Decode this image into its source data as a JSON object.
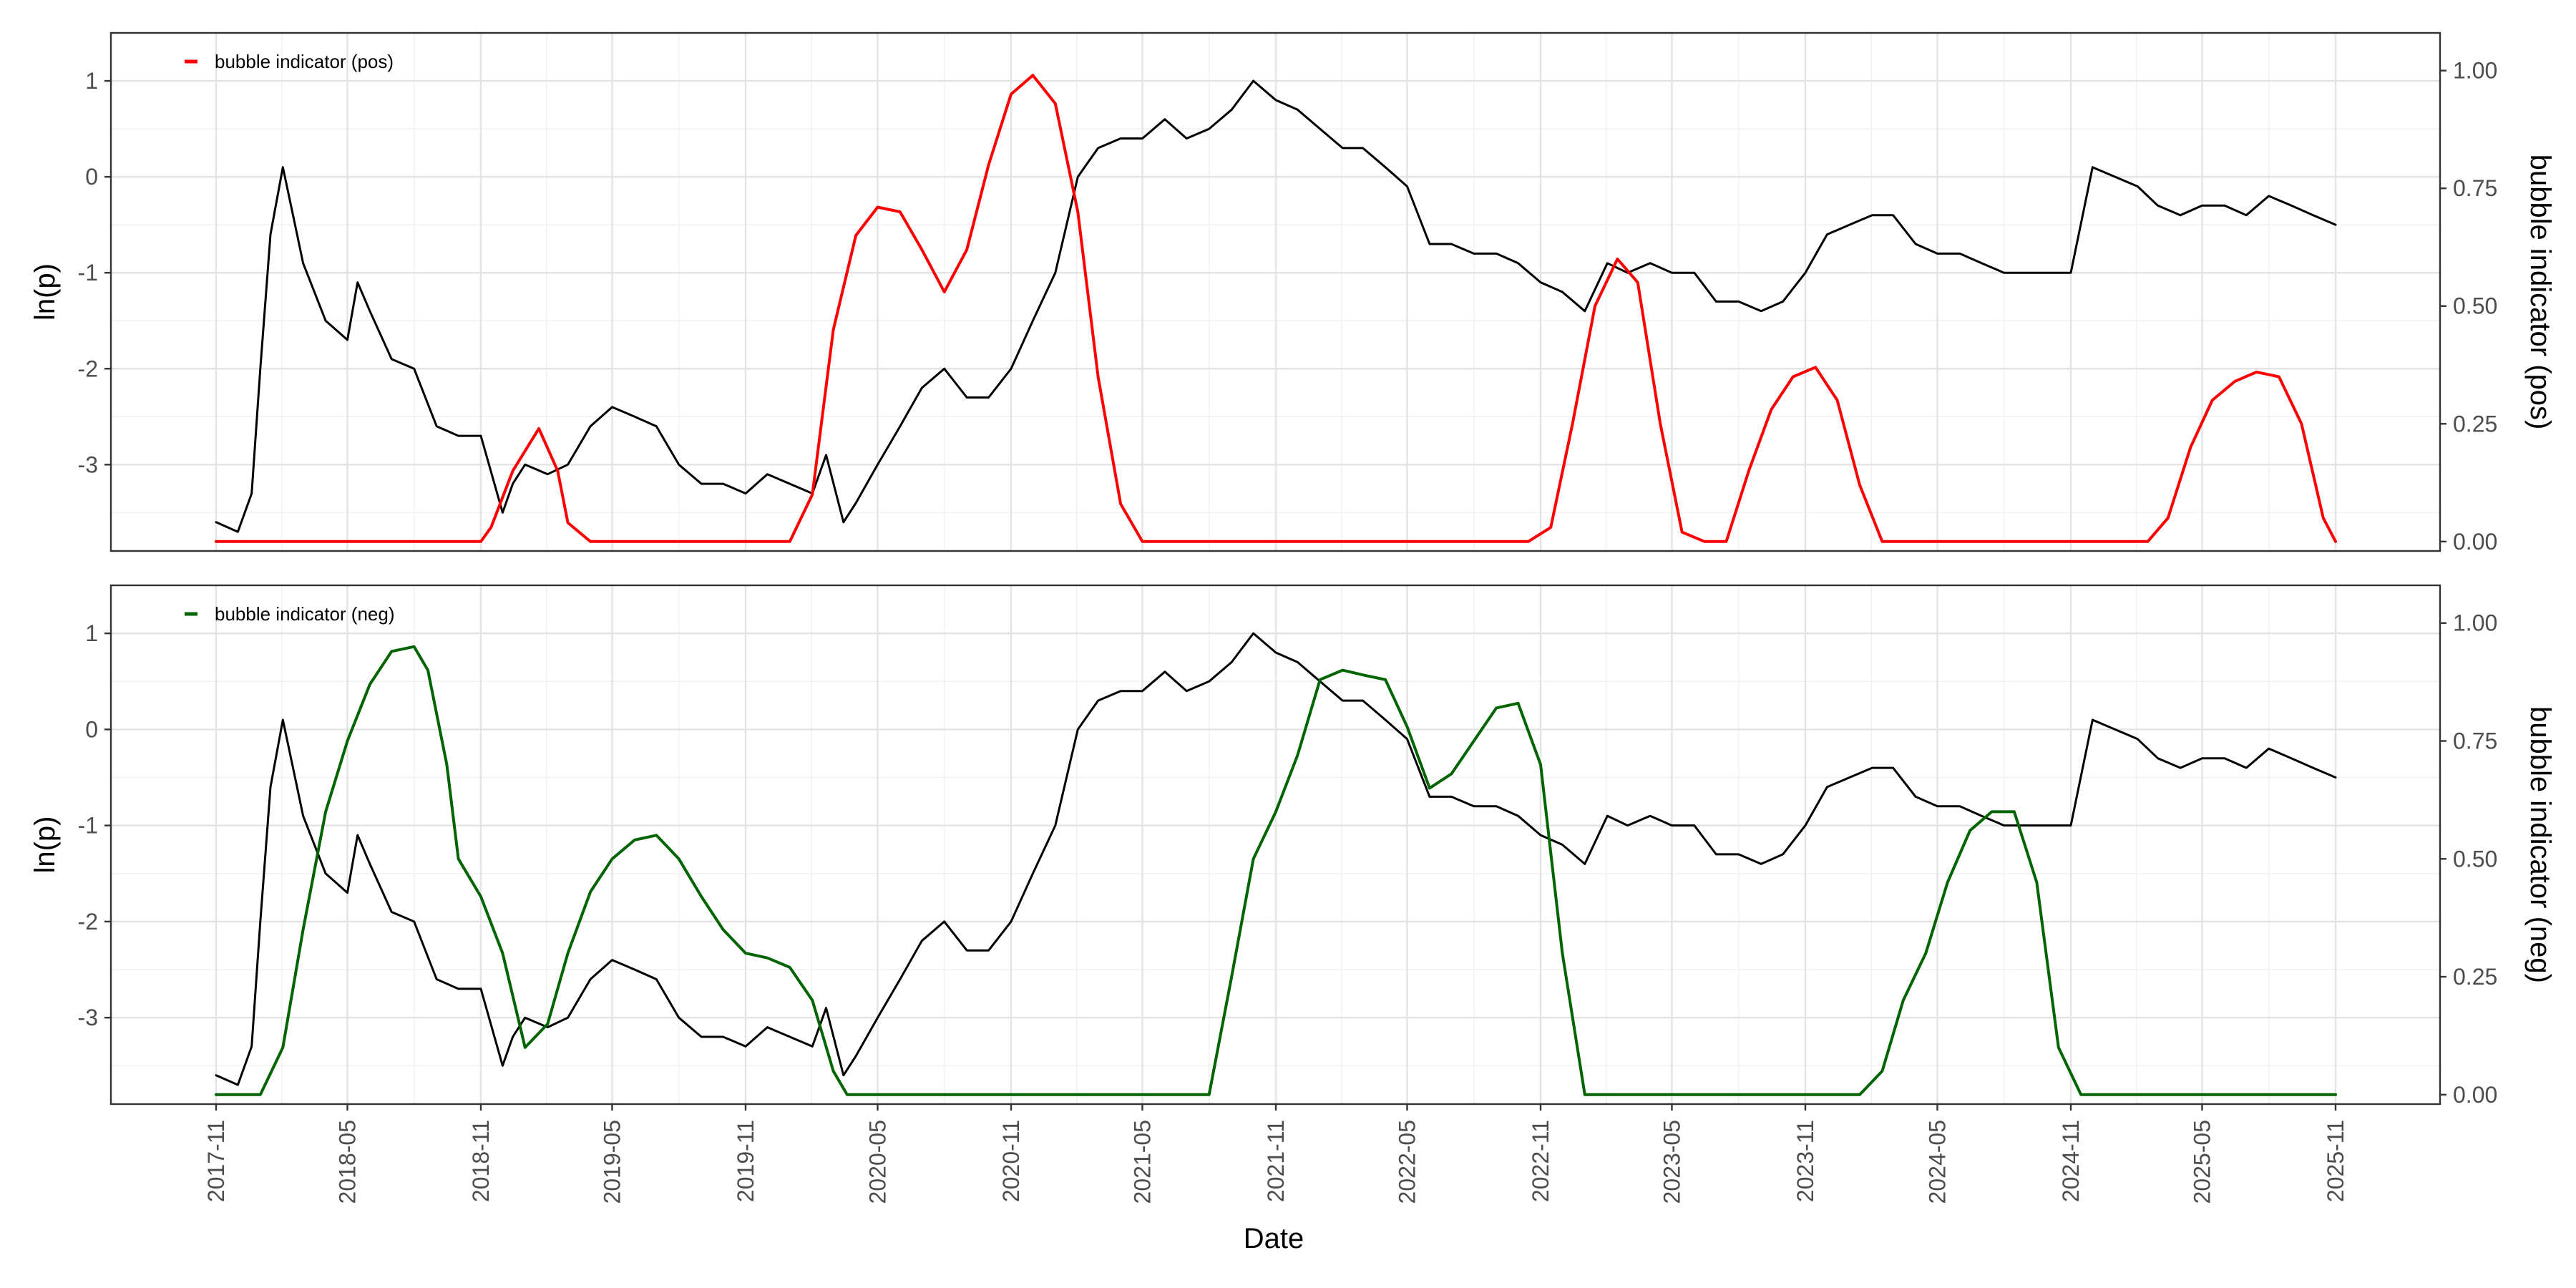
{
  "chart_data": [
    {
      "type": "line",
      "legend": "bubble indicator (pos)",
      "legend_position": "top-left",
      "xlabel": "Date",
      "ylabel_left": "ln(p)",
      "ylabel_right": "bubble indicator (pos)",
      "xlim": [
        "2017-11-01",
        "2025-11-01"
      ],
      "xticks": [
        "2017-11",
        "2018-05",
        "2018-11",
        "2019-05",
        "2019-11",
        "2020-05",
        "2020-11",
        "2021-05",
        "2021-11",
        "2022-05",
        "2022-11",
        "2023-05",
        "2023-11",
        "2024-05",
        "2024-11",
        "2025-05",
        "2025-11"
      ],
      "ylim_left": [
        -3.9,
        1.5
      ],
      "yticks_left": [
        "1",
        "0",
        "-1",
        "-2",
        "-3"
      ],
      "ylim_right": [
        -0.02,
        1.08
      ],
      "yticks_right": [
        "1.00",
        "0.75",
        "0.50",
        "0.25",
        "0.00"
      ],
      "grid": true,
      "series": [
        {
          "name": "ln(p)",
          "axis": "left",
          "color": "#000000",
          "x": [
            "2017-11-01",
            "2017-12-01",
            "2017-12-20",
            "2018-01-01",
            "2018-01-15",
            "2018-02-01",
            "2018-02-15",
            "2018-03-01",
            "2018-04-01",
            "2018-05-01",
            "2018-05-15",
            "2018-06-01",
            "2018-07-01",
            "2018-08-01",
            "2018-09-01",
            "2018-10-01",
            "2018-11-01",
            "2018-12-01",
            "2018-12-15",
            "2019-01-01",
            "2019-02-01",
            "2019-03-01",
            "2019-04-01",
            "2019-05-01",
            "2019-06-01",
            "2019-07-01",
            "2019-08-01",
            "2019-09-01",
            "2019-10-01",
            "2019-11-01",
            "2019-12-01",
            "2020-01-01",
            "2020-02-01",
            "2020-02-20",
            "2020-03-15",
            "2020-04-01",
            "2020-05-01",
            "2020-06-01",
            "2020-07-01",
            "2020-08-01",
            "2020-09-01",
            "2020-10-01",
            "2020-11-01",
            "2020-12-01",
            "2021-01-01",
            "2021-02-01",
            "2021-03-01",
            "2021-04-01",
            "2021-05-01",
            "2021-06-01",
            "2021-07-01",
            "2021-08-01",
            "2021-09-01",
            "2021-10-01",
            "2021-11-01",
            "2021-12-01",
            "2022-01-01",
            "2022-02-01",
            "2022-03-01",
            "2022-04-01",
            "2022-05-01",
            "2022-06-01",
            "2022-07-01",
            "2022-08-01",
            "2022-09-01",
            "2022-10-01",
            "2022-11-01",
            "2022-12-01",
            "2023-01-01",
            "2023-02-01",
            "2023-03-01",
            "2023-04-01",
            "2023-05-01",
            "2023-06-01",
            "2023-07-01",
            "2023-08-01",
            "2023-09-01",
            "2023-10-01",
            "2023-11-01",
            "2023-12-01",
            "2024-01-01",
            "2024-02-01",
            "2024-03-01",
            "2024-04-01",
            "2024-05-01",
            "2024-06-01",
            "2024-07-01",
            "2024-08-01",
            "2024-09-01",
            "2024-10-01",
            "2024-11-01",
            "2024-12-01",
            "2025-01-01",
            "2025-02-01",
            "2025-03-01",
            "2025-04-01",
            "2025-05-01",
            "2025-06-01",
            "2025-07-01",
            "2025-08-01",
            "2025-09-01",
            "2025-10-01",
            "2025-11-01"
          ],
          "values": [
            -3.6,
            -3.7,
            -3.3,
            -2.0,
            -0.6,
            0.1,
            -0.4,
            -0.9,
            -1.5,
            -1.7,
            -1.1,
            -1.4,
            -1.9,
            -2.0,
            -2.6,
            -2.7,
            -2.7,
            -3.5,
            -3.2,
            -3.0,
            -3.1,
            -3.0,
            -2.6,
            -2.4,
            -2.5,
            -2.6,
            -3.0,
            -3.2,
            -3.2,
            -3.3,
            -3.1,
            -3.2,
            -3.3,
            -2.9,
            -3.6,
            -3.4,
            -3.0,
            -2.6,
            -2.2,
            -2.0,
            -2.3,
            -2.3,
            -2.0,
            -1.5,
            -1.0,
            0.0,
            0.3,
            0.4,
            0.4,
            0.6,
            0.4,
            0.5,
            0.7,
            1.0,
            0.8,
            0.7,
            0.5,
            0.3,
            0.3,
            0.1,
            -0.1,
            -0.7,
            -0.7,
            -0.8,
            -0.8,
            -0.9,
            -1.1,
            -1.2,
            -1.4,
            -0.9,
            -1.0,
            -0.9,
            -1.0,
            -1.0,
            -1.3,
            -1.3,
            -1.4,
            -1.3,
            -1.0,
            -0.6,
            -0.5,
            -0.4,
            -0.4,
            -0.7,
            -0.8,
            -0.8,
            -0.9,
            -1.0,
            -1.0,
            -1.0,
            -1.0,
            0.1,
            0.0,
            -0.1,
            -0.3,
            -0.4,
            -0.3,
            -0.3,
            -0.4,
            -0.2,
            -0.3,
            -0.4,
            -0.5
          ]
        },
        {
          "name": "bubble indicator (pos)",
          "axis": "right",
          "color": "#ff0000",
          "x": [
            "2017-11-01",
            "2018-11-01",
            "2018-11-15",
            "2018-12-15",
            "2019-01-20",
            "2019-02-15",
            "2019-03-01",
            "2019-04-01",
            "2019-11-01",
            "2020-01-01",
            "2020-02-01",
            "2020-03-01",
            "2020-04-01",
            "2020-05-01",
            "2020-06-01",
            "2020-07-01",
            "2020-08-01",
            "2020-09-01",
            "2020-10-01",
            "2020-11-01",
            "2020-12-01",
            "2021-01-01",
            "2021-02-01",
            "2021-03-01",
            "2021-04-01",
            "2021-05-01",
            "2021-05-15",
            "2021-06-01",
            "2022-01-01",
            "2022-10-15",
            "2022-11-15",
            "2022-12-15",
            "2023-01-15",
            "2023-02-15",
            "2023-03-15",
            "2023-04-15",
            "2023-05-15",
            "2023-06-15",
            "2023-07-15",
            "2023-08-15",
            "2023-09-15",
            "2023-10-15",
            "2023-11-15",
            "2023-12-15",
            "2024-01-15",
            "2024-02-15",
            "2024-12-01",
            "2025-01-15",
            "2025-02-15",
            "2025-03-15",
            "2025-04-15",
            "2025-05-15",
            "2025-06-15",
            "2025-07-15",
            "2025-08-15",
            "2025-09-15",
            "2025-10-15",
            "2025-11-01"
          ],
          "values": [
            0.0,
            0.0,
            0.03,
            0.15,
            0.24,
            0.15,
            0.04,
            0.0,
            0.0,
            0.0,
            0.1,
            0.45,
            0.65,
            0.71,
            0.7,
            0.62,
            0.53,
            0.62,
            0.8,
            0.95,
            0.99,
            0.93,
            0.7,
            0.35,
            0.08,
            0.0,
            0.0,
            0.0,
            0.0,
            0.0,
            0.03,
            0.25,
            0.5,
            0.6,
            0.55,
            0.25,
            0.02,
            0.0,
            0.0,
            0.15,
            0.28,
            0.35,
            0.37,
            0.3,
            0.12,
            0.0,
            0.0,
            0.0,
            0.0,
            0.05,
            0.2,
            0.3,
            0.34,
            0.36,
            0.35,
            0.25,
            0.05,
            0.0
          ]
        }
      ]
    },
    {
      "type": "line",
      "legend": "bubble indicator (neg)",
      "legend_position": "top-left",
      "xlabel": "Date",
      "ylabel_left": "ln(p)",
      "ylabel_right": "bubble indicator (neg)",
      "xlim": [
        "2017-11-01",
        "2025-11-01"
      ],
      "xticks": [
        "2017-11",
        "2018-05",
        "2018-11",
        "2019-05",
        "2019-11",
        "2020-05",
        "2020-11",
        "2021-05",
        "2021-11",
        "2022-05",
        "2022-11",
        "2023-05",
        "2023-11",
        "2024-05",
        "2024-11",
        "2025-05",
        "2025-11"
      ],
      "ylim_left": [
        -3.9,
        1.5
      ],
      "yticks_left": [
        "1",
        "0",
        "-1",
        "-2",
        "-3"
      ],
      "ylim_right": [
        -0.02,
        1.08
      ],
      "yticks_right": [
        "1.00",
        "0.75",
        "0.50",
        "0.25",
        "0.00"
      ],
      "grid": true,
      "series": [
        {
          "name": "ln(p)",
          "axis": "left",
          "color": "#000000",
          "same_as_panel_1": true
        },
        {
          "name": "bubble indicator (neg)",
          "axis": "right",
          "color": "#006400",
          "x": [
            "2017-11-01",
            "2018-01-01",
            "2018-02-01",
            "2018-03-01",
            "2018-04-01",
            "2018-05-01",
            "2018-06-01",
            "2018-07-01",
            "2018-08-01",
            "2018-08-20",
            "2018-09-15",
            "2018-10-01",
            "2018-11-01",
            "2018-12-01",
            "2019-01-01",
            "2019-02-01",
            "2019-03-01",
            "2019-04-01",
            "2019-05-01",
            "2019-06-01",
            "2019-07-01",
            "2019-08-01",
            "2019-09-01",
            "2019-10-01",
            "2019-11-01",
            "2019-12-01",
            "2020-01-01",
            "2020-02-01",
            "2020-03-01",
            "2020-03-20",
            "2020-04-01",
            "2021-08-01",
            "2021-09-01",
            "2021-10-01",
            "2021-11-01",
            "2021-12-01",
            "2022-01-01",
            "2022-02-01",
            "2022-03-01",
            "2022-04-01",
            "2022-05-01",
            "2022-06-01",
            "2022-07-01",
            "2022-08-01",
            "2022-09-01",
            "2022-10-01",
            "2022-11-01",
            "2022-12-01",
            "2023-01-01",
            "2023-02-01",
            "2023-03-01",
            "2024-01-15",
            "2024-02-15",
            "2024-03-15",
            "2024-04-15",
            "2024-05-15",
            "2024-06-15",
            "2024-07-15",
            "2024-08-15",
            "2024-09-15",
            "2024-10-15",
            "2024-11-15",
            "2025-11-01"
          ],
          "values": [
            0.0,
            0.0,
            0.1,
            0.35,
            0.6,
            0.75,
            0.87,
            0.94,
            0.95,
            0.9,
            0.7,
            0.5,
            0.42,
            0.3,
            0.1,
            0.15,
            0.3,
            0.43,
            0.5,
            0.54,
            0.55,
            0.5,
            0.42,
            0.35,
            0.3,
            0.29,
            0.27,
            0.2,
            0.05,
            0.0,
            0.0,
            0.0,
            0.25,
            0.5,
            0.6,
            0.72,
            0.88,
            0.9,
            0.89,
            0.88,
            0.78,
            0.65,
            0.68,
            0.75,
            0.82,
            0.83,
            0.7,
            0.3,
            0.0,
            0.0,
            0.0,
            0.0,
            0.05,
            0.2,
            0.3,
            0.45,
            0.56,
            0.6,
            0.6,
            0.45,
            0.1,
            0.0,
            0.0
          ]
        }
      ]
    }
  ]
}
